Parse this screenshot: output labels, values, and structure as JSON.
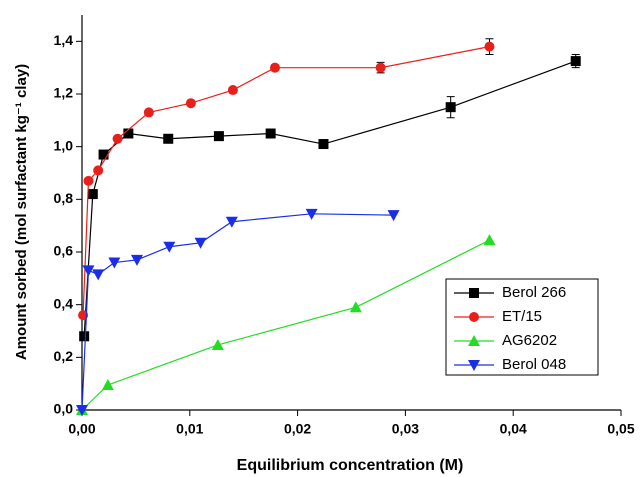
{
  "chart_data": {
    "type": "line",
    "xlabel": "Equilibrium concentration (M)",
    "ylabel": "Amount sorbed (mol surfactant kg⁻¹ clay)",
    "xlim": [
      0,
      0.05
    ],
    "ylim": [
      0,
      1.5
    ],
    "xticks": [
      {
        "value": 0,
        "label": "0,00"
      },
      {
        "value": 0.01,
        "label": "0,01"
      },
      {
        "value": 0.02,
        "label": "0,02"
      },
      {
        "value": 0.03,
        "label": "0,03"
      },
      {
        "value": 0.04,
        "label": "0,04"
      },
      {
        "value": 0.05,
        "label": "0,05"
      }
    ],
    "yticks": [
      {
        "value": 0,
        "label": "0,0"
      },
      {
        "value": 0.2,
        "label": "0,2"
      },
      {
        "value": 0.4,
        "label": "0,4"
      },
      {
        "value": 0.6,
        "label": "0,6"
      },
      {
        "value": 0.8,
        "label": "0,8"
      },
      {
        "value": 1.0,
        "label": "1,0"
      },
      {
        "value": 1.2,
        "label": "1,2"
      },
      {
        "value": 1.4,
        "label": "1,4"
      }
    ],
    "legend": "lower right",
    "series": [
      {
        "name": "Berol 266",
        "color": "#000000",
        "marker": "square",
        "x": [
          0.0002,
          0.001,
          0.002,
          0.0043,
          0.008,
          0.0127,
          0.0175,
          0.0224,
          0.0342,
          0.0458
        ],
        "values": [
          0.28,
          0.82,
          0.97,
          1.05,
          1.03,
          1.04,
          1.05,
          1.01,
          1.15,
          1.325
        ],
        "errors": [
          null,
          null,
          null,
          null,
          null,
          null,
          null,
          null,
          0.04,
          0.025
        ]
      },
      {
        "name": "ET/15",
        "color": "#e8201c",
        "marker": "circle",
        "x": [
          0.0001,
          0.0006,
          0.0015,
          0.0033,
          0.0062,
          0.0101,
          0.014,
          0.0179,
          0.0277,
          0.0378
        ],
        "values": [
          0.36,
          0.87,
          0.91,
          1.03,
          1.13,
          1.165,
          1.215,
          1.3,
          1.3,
          1.38
        ],
        "errors": [
          null,
          null,
          null,
          null,
          null,
          null,
          null,
          null,
          0.02,
          0.03
        ]
      },
      {
        "name": "AG6202",
        "color": "#22dd22",
        "marker": "triangle-up",
        "x": [
          0,
          0.0024,
          0.0126,
          0.0254,
          0.0378
        ],
        "values": [
          0,
          0.095,
          0.247,
          0.39,
          0.645
        ]
      },
      {
        "name": "Berol 048",
        "color": "#1a2ee8",
        "marker": "triangle-down",
        "x": [
          0,
          0.0006,
          0.0015,
          0.003,
          0.0051,
          0.0081,
          0.011,
          0.0139,
          0.0213,
          0.0289
        ],
        "values": [
          0,
          0.53,
          0.515,
          0.56,
          0.57,
          0.62,
          0.635,
          0.715,
          0.745,
          0.74
        ]
      }
    ]
  }
}
